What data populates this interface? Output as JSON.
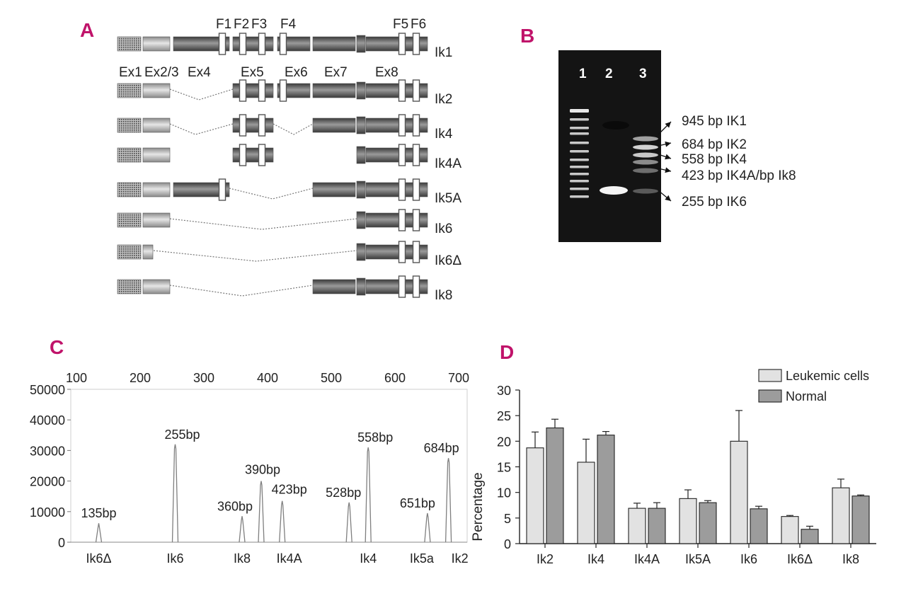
{
  "panels": {
    "a": "A",
    "b": "B",
    "c": "C",
    "d": "D"
  },
  "panel_a": {
    "exon_labels": [
      "Ex1",
      "Ex2/3",
      "Ex4",
      "Ex5",
      "Ex6",
      "Ex7",
      "Ex8"
    ],
    "finger_labels": [
      "F1",
      "F2",
      "F3",
      "F4",
      "F5",
      "F6"
    ],
    "isoforms": [
      "Ik1",
      "Ik2",
      "Ik4",
      "Ik4A",
      "Ik5A",
      "Ik6",
      "Ik6Δ",
      "Ik8"
    ]
  },
  "panel_b": {
    "lanes": [
      "1",
      "2",
      "3"
    ],
    "bands": [
      "945 bp IK1",
      "684 bp IK2",
      "558 bp IK4",
      "423 bp IK4A/bp Ik8",
      "255 bp IK6"
    ]
  },
  "chart_data": [
    {
      "type": "line",
      "x_ticks": [
        "100",
        "200",
        "300",
        "400",
        "500",
        "600",
        "700"
      ],
      "y_ticks": [
        "0",
        "10000",
        "20000",
        "30000",
        "40000",
        "50000"
      ],
      "xlim": [
        100,
        700
      ],
      "ylim": [
        0,
        50000
      ],
      "peaks": [
        {
          "x": 135,
          "y": 6200,
          "label": "135bp",
          "isoform": "Ik6Δ"
        },
        {
          "x": 255,
          "y": 32000,
          "label": "255bp",
          "isoform": "Ik6"
        },
        {
          "x": 360,
          "y": 8500,
          "label": "360bp",
          "isoform": "Ik8"
        },
        {
          "x": 390,
          "y": 20000,
          "label": "390bp",
          "isoform": ""
        },
        {
          "x": 423,
          "y": 13500,
          "label": "423bp",
          "isoform": "Ik4A"
        },
        {
          "x": 528,
          "y": 13000,
          "label": "528bp",
          "isoform": ""
        },
        {
          "x": 558,
          "y": 31000,
          "label": "558bp",
          "isoform": "Ik4"
        },
        {
          "x": 651,
          "y": 9500,
          "label": "651bp",
          "isoform": "Ik5a"
        },
        {
          "x": 684,
          "y": 27500,
          "label": "684bp",
          "isoform": "Ik2"
        }
      ]
    },
    {
      "type": "bar",
      "categories": [
        "Ik2",
        "Ik4",
        "Ik4A",
        "Ik5A",
        "Ik6",
        "Ik6Δ",
        "Ik8"
      ],
      "series": [
        {
          "name": "Leukemic cells",
          "values": [
            18.7,
            15.9,
            6.9,
            8.8,
            20.0,
            5.3,
            10.9
          ],
          "errors": [
            3.1,
            4.5,
            1.0,
            1.7,
            6.0,
            0.2,
            1.7
          ],
          "color": "#e2e2e2"
        },
        {
          "name": "Normal",
          "values": [
            22.6,
            21.2,
            6.9,
            8.0,
            6.8,
            2.8,
            9.3
          ],
          "errors": [
            1.7,
            0.7,
            1.1,
            0.4,
            0.5,
            0.6,
            0.2
          ],
          "color": "#9c9c9c"
        }
      ],
      "ylabel": "Percentage",
      "ylim": [
        0,
        30
      ],
      "y_ticks": [
        "0",
        "5",
        "10",
        "15",
        "20",
        "25",
        "30"
      ],
      "legend": "top-right"
    }
  ]
}
